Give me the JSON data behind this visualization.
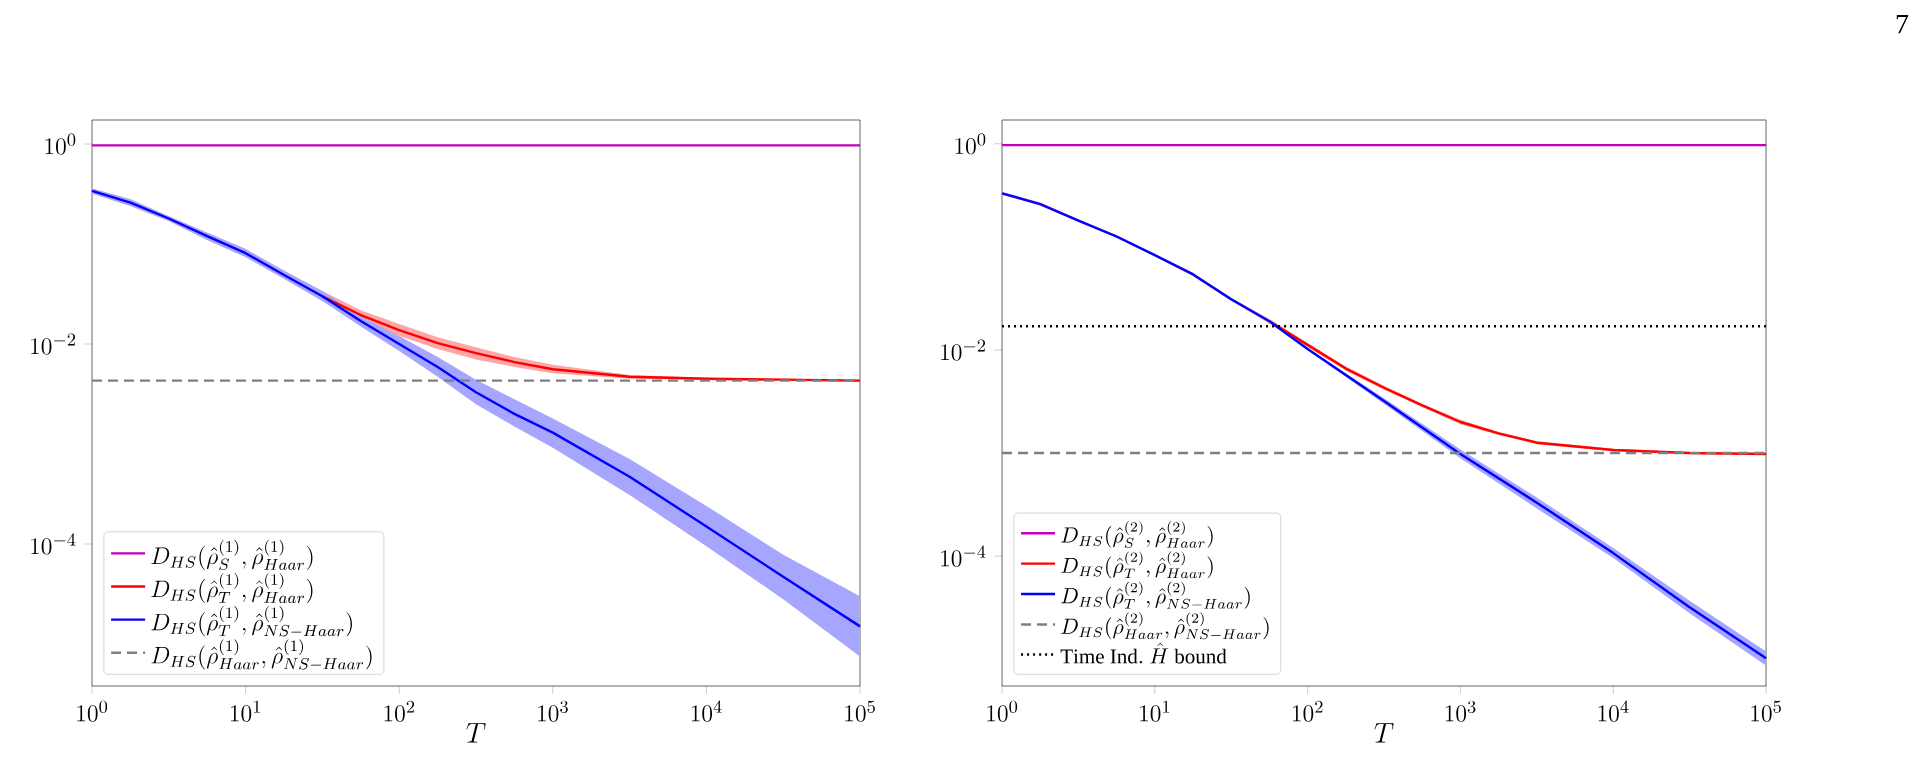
{
  "chart_data": [
    {
      "type": "line",
      "xlabel": "T",
      "log": "xy",
      "legend": "bottom left",
      "xlim": [
        1,
        100000
      ],
      "ylim": [
        3.8e-06,
        1.74
      ],
      "xticks": [
        {
          "value": 1,
          "label": "10^{0}"
        },
        {
          "value": 10,
          "label": "10^{1}"
        },
        {
          "value": 100,
          "label": "10^{2}"
        },
        {
          "value": 1000,
          "label": "10^{3}"
        },
        {
          "value": 10000,
          "label": "10^{4}"
        },
        {
          "value": 100000,
          "label": "10^{5}"
        }
      ],
      "yticks": [
        {
          "value": 1,
          "label": "10^{0}"
        },
        {
          "value": 0.01,
          "label": "10^{-2}"
        },
        {
          "value": 0.0001,
          "label": "10^{-4}"
        }
      ],
      "series": [
        {
          "name": "D_{HS}(\\hat{\\rho}_{S}^{(1)},\\hat{\\rho}_{Haar}^{(1)})",
          "color": "#bf00bf",
          "x": [
            1,
            100000
          ],
          "values": [
            0.97,
            0.97
          ]
        },
        {
          "name": "D_{HS}(\\hat{\\rho}_{T}^{(1)},\\hat{\\rho}_{Haar}^{(1)})",
          "color": "#ff0000",
          "x": [
            1,
            1.78,
            3.16,
            5.62,
            10,
            17.8,
            31.6,
            56.2,
            100,
            178,
            316,
            562,
            1000,
            3162,
            10000,
            31623,
            100000
          ],
          "values": [
            null,
            null,
            null,
            null,
            null,
            null,
            0.03,
            0.0195,
            0.0138,
            0.0102,
            0.0081,
            0.0066,
            0.0056,
            0.0047,
            0.0045,
            0.0044,
            0.0043
          ],
          "lower": [
            0.32,
            0.24,
            0.17,
            0.11,
            0.074,
            0.045,
            0.027,
            0.0174,
            0.012,
            0.0089,
            0.007,
            0.0059,
            0.0051,
            0.0045,
            0.0044,
            0.0043,
            0.0042
          ],
          "upper": [
            0.36,
            0.28,
            0.19,
            0.13,
            0.089,
            0.054,
            0.034,
            0.0218,
            0.0159,
            0.0117,
            0.0093,
            0.0074,
            0.0062,
            0.0049,
            0.0046,
            0.0045,
            0.0044
          ]
        },
        {
          "name": "D_{HS}(\\hat{\\rho}_{T}^{(1)},\\hat{\\rho}_{NS-Haar}^{(1)})",
          "color": "#0000ff",
          "x": [
            1,
            1.78,
            3.16,
            5.62,
            10,
            17.8,
            31.6,
            56.2,
            100,
            178,
            316,
            562,
            1000,
            3162,
            10000,
            31623,
            100000
          ],
          "values": [
            0.34,
            0.26,
            0.18,
            0.12,
            0.081,
            0.049,
            0.03,
            0.017,
            0.01,
            0.0059,
            0.0033,
            0.002,
            0.0013,
            0.00047,
            0.00015,
            4.7e-05,
            1.5e-05
          ],
          "lower": [
            0.32,
            0.24,
            0.17,
            0.11,
            0.074,
            0.045,
            0.027,
            0.015,
            0.0085,
            0.0047,
            0.0025,
            0.0015,
            0.00092,
            0.00031,
            9.5e-05,
            2.8e-05,
            7.5e-06
          ],
          "upper": [
            0.36,
            0.28,
            0.19,
            0.13,
            0.089,
            0.054,
            0.034,
            0.019,
            0.012,
            0.0074,
            0.0044,
            0.0028,
            0.0018,
            0.00071,
            0.00024,
            7.8e-05,
            3e-05
          ]
        },
        {
          "name": "D_{HS}(\\hat{\\rho}_{Haar}^{(1)},\\hat{\\rho}_{NS-Haar}^{(1)})",
          "color": "#808080",
          "line_style": "dashed",
          "x": [
            1,
            100000
          ],
          "values": [
            0.0043,
            0.0043
          ]
        }
      ]
    },
    {
      "type": "line",
      "xlabel": "T",
      "log": "xy",
      "legend": "bottom left",
      "xlim": [
        1,
        100000
      ],
      "ylim": [
        5.5e-06,
        1.7
      ],
      "xticks": [
        {
          "value": 1,
          "label": "10^{0}"
        },
        {
          "value": 10,
          "label": "10^{1}"
        },
        {
          "value": 100,
          "label": "10^{2}"
        },
        {
          "value": 1000,
          "label": "10^{3}"
        },
        {
          "value": 10000,
          "label": "10^{4}"
        },
        {
          "value": 100000,
          "label": "10^{5}"
        }
      ],
      "yticks": [
        {
          "value": 1,
          "label": "10^{0}"
        },
        {
          "value": 0.01,
          "label": "10^{-2}"
        },
        {
          "value": 0.0001,
          "label": "10^{-4}"
        }
      ],
      "annotations": [
        "7"
      ],
      "series": [
        {
          "name": "D_{HS}(\\hat{\\rho}_{S}^{(2)},\\hat{\\rho}_{Haar}^{(2)})",
          "color": "#bf00bf",
          "x": [
            1,
            100000
          ],
          "values": [
            0.97,
            0.97
          ]
        },
        {
          "name": "D_{HS}(\\hat{\\rho}_{T}^{(2)},\\hat{\\rho}_{Haar}^{(2)})",
          "color": "#ff0000",
          "x": [
            1,
            1.78,
            3.16,
            5.62,
            10,
            17.8,
            31.6,
            56.2,
            100,
            178,
            316,
            562,
            1000,
            1778,
            3162,
            10000,
            31623,
            100000
          ],
          "values": [
            null,
            null,
            null,
            null,
            null,
            null,
            null,
            0.019,
            0.0112,
            0.0066,
            0.0043,
            0.0029,
            0.002,
            0.00155,
            0.00126,
            0.00107,
            0.001,
            0.00098
          ],
          "lower": [
            0.32,
            0.25,
            0.175,
            0.122,
            0.081,
            0.052,
            0.03,
            0.018,
            0.0107,
            0.0063,
            0.0041,
            0.0028,
            0.0019,
            0.0015,
            0.00122,
            0.00104,
            0.00098,
            0.00096
          ],
          "upper": [
            0.34,
            0.27,
            0.185,
            0.13,
            0.085,
            0.056,
            0.032,
            0.02,
            0.0117,
            0.0069,
            0.0045,
            0.003,
            0.0021,
            0.0016,
            0.0013,
            0.0011,
            0.00102,
            0.001
          ]
        },
        {
          "name": "D_{HS}(\\hat{\\rho}_{T}^{(2)},\\hat{\\rho}_{NS-Haar}^{(2)})",
          "color": "#0000ff",
          "x": [
            1,
            1.78,
            3.16,
            5.62,
            10,
            17.8,
            31.6,
            56.2,
            100,
            316,
            1000,
            3162,
            10000,
            31623,
            100000
          ],
          "values": [
            0.33,
            0.26,
            0.18,
            0.126,
            0.083,
            0.054,
            0.031,
            0.019,
            0.0102,
            0.0032,
            0.00098,
            0.00033,
            0.000107,
            3.2e-05,
            1.02e-05
          ],
          "lower": [
            0.32,
            0.255,
            0.176,
            0.123,
            0.081,
            0.053,
            0.03,
            0.0186,
            0.01,
            0.003,
            0.00089,
            0.00029,
            9.6e-05,
            2.8e-05,
            8.7e-06
          ],
          "upper": [
            0.34,
            0.265,
            0.184,
            0.129,
            0.085,
            0.055,
            0.032,
            0.0194,
            0.0104,
            0.0034,
            0.00108,
            0.00037,
            0.00012,
            3.7e-05,
            1.19e-05
          ]
        },
        {
          "name": "D_{HS}(\\hat{\\rho}_{Haar}^{(2)},\\hat{\\rho}_{NS-Haar}^{(2)})",
          "color": "#808080",
          "line_style": "dashed",
          "x": [
            1,
            100000
          ],
          "values": [
            0.001,
            0.001
          ]
        },
        {
          "name": "\\mathrm{Time\\ Ind.}\\ \\hat{H}\\ \\mathrm{bound}",
          "color": "#000000",
          "line_style": "dotted",
          "x": [
            1,
            100000
          ],
          "values": [
            0.017,
            0.017
          ]
        }
      ]
    }
  ]
}
